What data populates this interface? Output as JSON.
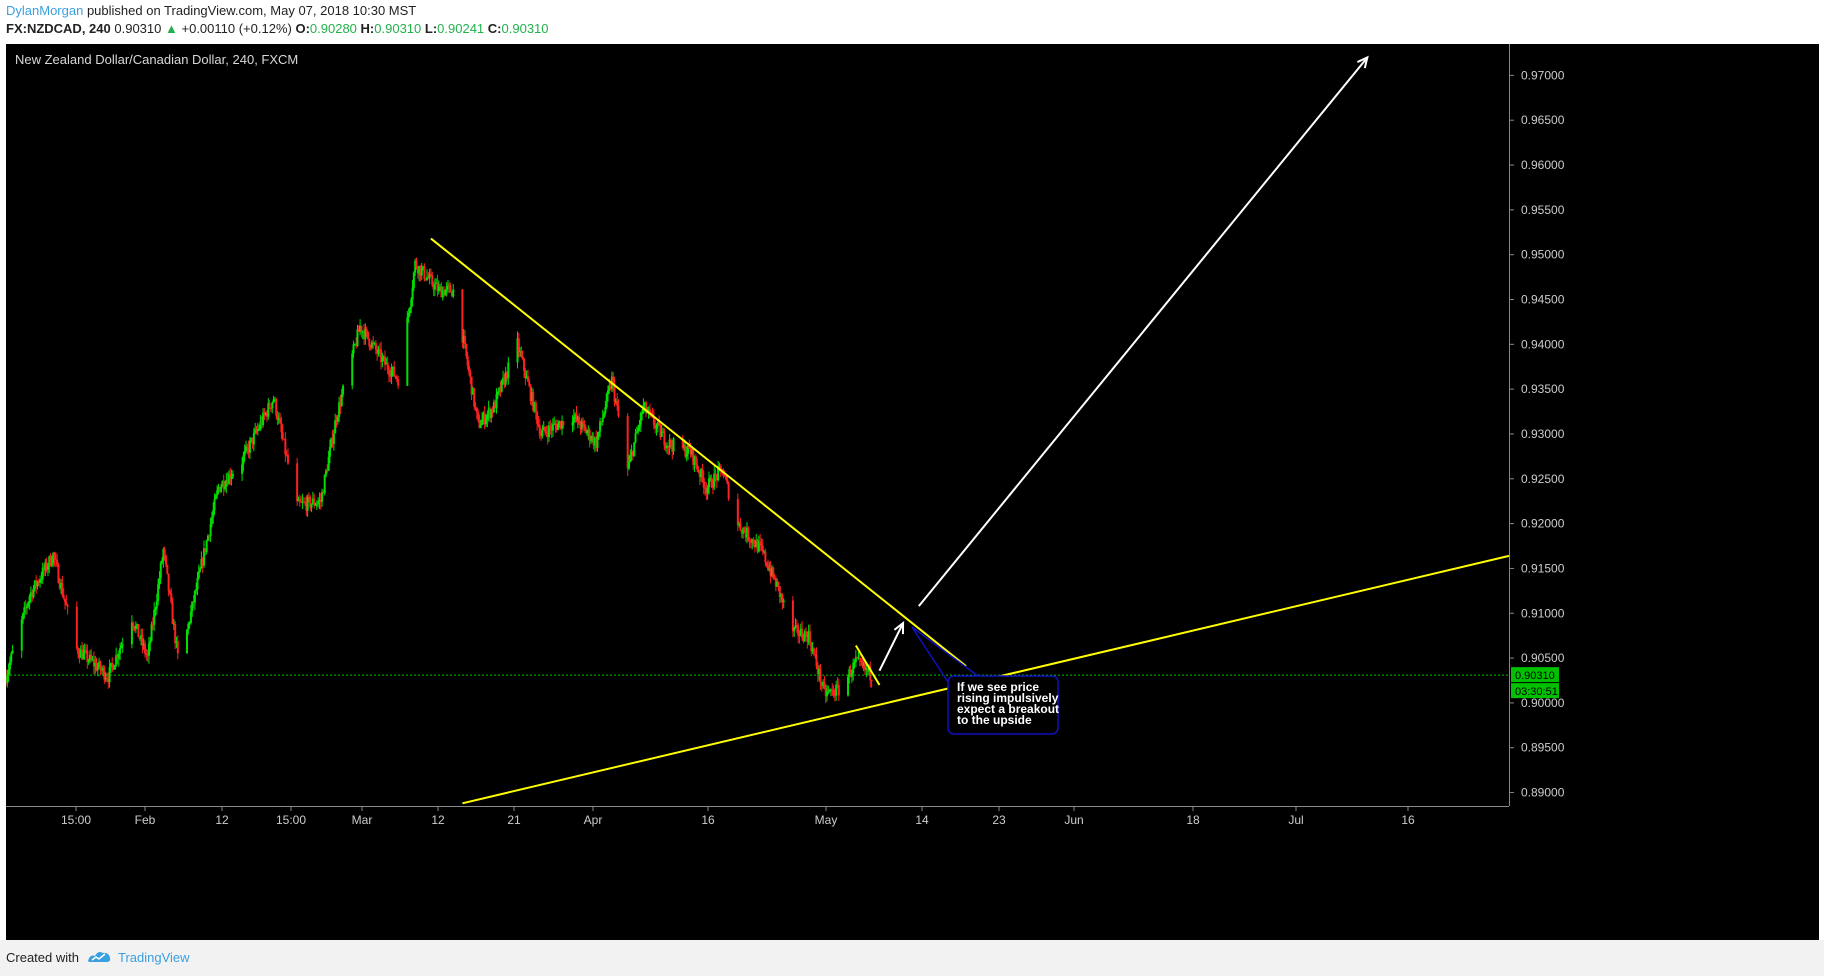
{
  "header": {
    "author": "DylanMorgan",
    "published": "published on TradingView.com, May 07, 2018 10:30 MST",
    "symbol": "FX:NZDCAD, 240",
    "last": "0.90310",
    "change_arrow": "▲",
    "change": "+0.00110 (+0.12%)",
    "open_label": "O:",
    "open": "0.90280",
    "high_label": "H:",
    "high": "0.90310",
    "low_label": "L:",
    "low": "0.90241",
    "close_label": "C:",
    "close": "0.90310"
  },
  "chart_data": {
    "type": "candlestick",
    "title": "New Zealand Dollar/Canadian Dollar, 240, FXCM",
    "x_tick_labels": [
      "15:00",
      "Feb",
      "12",
      "15:00",
      "Mar",
      "12",
      "21",
      "Apr",
      "16",
      "May",
      "14",
      "23",
      "Jun",
      "18",
      "Jul",
      "16"
    ],
    "y_ticks": [
      "0.97000",
      "0.96500",
      "0.96000",
      "0.95500",
      "0.95000",
      "0.94500",
      "0.94000",
      "0.93500",
      "0.93000",
      "0.92500",
      "0.92000",
      "0.91500",
      "0.91000",
      "0.90500",
      "0.90000",
      "0.89500",
      "0.89000"
    ],
    "ylim": [
      0.8885,
      0.9735
    ],
    "x_range": [
      "2018-01-19",
      "2018-07-29"
    ],
    "price_path": [
      {
        "x": "2018-01-19",
        "y": 0.903
      },
      {
        "x": "2018-01-22",
        "y": 0.912
      },
      {
        "x": "2018-01-25",
        "y": 0.9165
      },
      {
        "x": "2018-01-28",
        "y": 0.906
      },
      {
        "x": "2018-02-01",
        "y": 0.903
      },
      {
        "x": "2018-02-04",
        "y": 0.9095
      },
      {
        "x": "2018-02-06",
        "y": 0.905
      },
      {
        "x": "2018-02-08",
        "y": 0.917
      },
      {
        "x": "2018-02-10",
        "y": 0.904
      },
      {
        "x": "2018-02-12",
        "y": 0.912
      },
      {
        "x": "2018-02-15",
        "y": 0.924
      },
      {
        "x": "2018-02-18",
        "y": 0.927
      },
      {
        "x": "2018-02-22",
        "y": 0.934
      },
      {
        "x": "2018-02-25",
        "y": 0.922
      },
      {
        "x": "2018-02-28",
        "y": 0.9225
      },
      {
        "x": "2018-03-02",
        "y": 0.932
      },
      {
        "x": "2018-03-05",
        "y": 0.942
      },
      {
        "x": "2018-03-08",
        "y": 0.938
      },
      {
        "x": "2018-03-10",
        "y": 0.936
      },
      {
        "x": "2018-03-12",
        "y": 0.949
      },
      {
        "x": "2018-03-15",
        "y": 0.946
      },
      {
        "x": "2018-03-17",
        "y": 0.946
      },
      {
        "x": "2018-03-20",
        "y": 0.931
      },
      {
        "x": "2018-03-22",
        "y": 0.933
      },
      {
        "x": "2018-03-25",
        "y": 0.94
      },
      {
        "x": "2018-03-28",
        "y": 0.93
      },
      {
        "x": "2018-04-01",
        "y": 0.932
      },
      {
        "x": "2018-04-04",
        "y": 0.929
      },
      {
        "x": "2018-04-06",
        "y": 0.936
      },
      {
        "x": "2018-04-08",
        "y": 0.926
      },
      {
        "x": "2018-04-10",
        "y": 0.933
      },
      {
        "x": "2018-04-13",
        "y": 0.929
      },
      {
        "x": "2018-04-16",
        "y": 0.928
      },
      {
        "x": "2018-04-18",
        "y": 0.924
      },
      {
        "x": "2018-04-20",
        "y": 0.926
      },
      {
        "x": "2018-04-22",
        "y": 0.92
      },
      {
        "x": "2018-04-25",
        "y": 0.917
      },
      {
        "x": "2018-04-27",
        "y": 0.913
      },
      {
        "x": "2018-04-29",
        "y": 0.908
      },
      {
        "x": "2018-05-01",
        "y": 0.9075
      },
      {
        "x": "2018-05-03",
        "y": 0.901
      },
      {
        "x": "2018-05-05",
        "y": 0.9015
      },
      {
        "x": "2018-05-07",
        "y": 0.9045
      },
      {
        "x": "2018-05-09",
        "y": 0.9031
      }
    ],
    "current_price": "0.90310",
    "countdown": "03:30:51",
    "annotations": [
      {
        "type": "trendline",
        "color": "#ffff00",
        "from": {
          "x": "2018-03-14",
          "y": 0.9518
        },
        "to": {
          "x": "2018-05-21",
          "y": 0.9041
        }
      },
      {
        "type": "trendline",
        "color": "#ffff00",
        "from": {
          "x": "2018-03-18",
          "y": 0.8888
        },
        "to": {
          "x": "2018-07-29",
          "y": 0.9164
        }
      },
      {
        "type": "trendline",
        "color": "#ffff00",
        "from": {
          "x": "2018-05-07",
          "y": 0.9064
        },
        "to": {
          "x": "2018-05-10",
          "y": 0.902
        }
      },
      {
        "type": "arrow",
        "color": "#ffffff",
        "from": {
          "x": "2018-05-10",
          "y": 0.9036
        },
        "to": {
          "x": "2018-05-13",
          "y": 0.9089
        }
      },
      {
        "type": "arrow",
        "color": "#ffffff",
        "from": {
          "x": "2018-05-15",
          "y": 0.9108
        },
        "to": {
          "x": "2018-07-11",
          "y": 0.972
        }
      },
      {
        "type": "callout",
        "text_lines": [
          "If we see price",
          "rising impulsively",
          "expect a breakout",
          "to the upside"
        ]
      }
    ]
  },
  "footer": {
    "created": "Created with",
    "brand": "TradingView"
  },
  "colors": {
    "up": "#00e000",
    "down": "#ff2020",
    "trendline": "#ffff00",
    "arrow": "#ffffff",
    "current_price_line": "#00c800",
    "callout_border": "#1010c0"
  }
}
